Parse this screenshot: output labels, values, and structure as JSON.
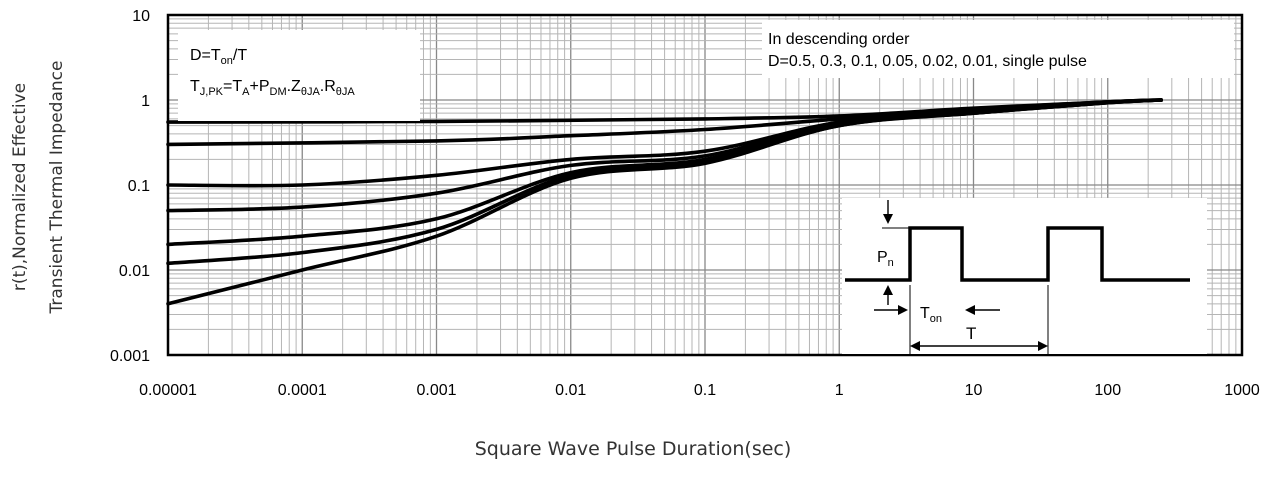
{
  "chart_data": {
    "type": "line",
    "scale": {
      "x": "log",
      "y": "log"
    },
    "xlim": [
      1e-05,
      1000
    ],
    "ylim": [
      0.001,
      10
    ],
    "x_ticks": [
      "0.00001",
      "0.0001",
      "0.001",
      "0.01",
      "0.1",
      "1",
      "10",
      "100",
      "1000"
    ],
    "y_ticks": [
      "10",
      "1",
      "0.1",
      "0.01",
      "0.001"
    ],
    "xlabel": "Square Wave Pulse Duration(sec)",
    "ylabel_lines": [
      "r(t),Normalized Effective",
      "Transient Thermal Impedance"
    ],
    "grid": true,
    "line_color": "#000000",
    "annotation_left": {
      "line1": {
        "base": "D=T",
        "sub": "on",
        "tail": "/T"
      },
      "line2": [
        "T",
        "J,PK",
        "=T",
        "A",
        "+P",
        "DM",
        ".Z",
        "θJA",
        ".R",
        "θJA"
      ]
    },
    "annotation_right": {
      "line1": "In descending order",
      "line2": "D=0.5, 0.3, 0.1, 0.05, 0.02, 0.01, single pulse"
    },
    "inset_labels": {
      "pn": {
        "base": "P",
        "sub": "n"
      },
      "ton": {
        "base": "T",
        "sub": "on"
      },
      "t": "T"
    },
    "series": [
      {
        "values": [
          [
            1e-05,
            0.55
          ],
          [
            0.001,
            0.56
          ],
          [
            0.1,
            0.6
          ],
          [
            1,
            0.65
          ],
          [
            10,
            0.8
          ],
          [
            100,
            0.95
          ],
          [
            250,
            1.0
          ]
        ]
      },
      {
        "values": [
          [
            1e-05,
            0.3
          ],
          [
            0.001,
            0.33
          ],
          [
            0.01,
            0.38
          ],
          [
            0.1,
            0.45
          ],
          [
            1,
            0.6
          ],
          [
            10,
            0.78
          ],
          [
            100,
            0.95
          ],
          [
            250,
            1.0
          ]
        ]
      },
      {
        "values": [
          [
            1e-05,
            0.1
          ],
          [
            0.0001,
            0.1
          ],
          [
            0.001,
            0.13
          ],
          [
            0.01,
            0.2
          ],
          [
            0.1,
            0.25
          ],
          [
            1,
            0.55
          ],
          [
            10,
            0.75
          ],
          [
            100,
            0.95
          ],
          [
            250,
            1.0
          ]
        ]
      },
      {
        "values": [
          [
            1e-05,
            0.05
          ],
          [
            0.0001,
            0.055
          ],
          [
            0.001,
            0.08
          ],
          [
            0.01,
            0.17
          ],
          [
            0.1,
            0.22
          ],
          [
            1,
            0.55
          ],
          [
            10,
            0.73
          ],
          [
            100,
            0.94
          ],
          [
            250,
            1.0
          ]
        ]
      },
      {
        "values": [
          [
            1e-05,
            0.02
          ],
          [
            0.0001,
            0.025
          ],
          [
            0.001,
            0.04
          ],
          [
            0.01,
            0.14
          ],
          [
            0.1,
            0.2
          ],
          [
            1,
            0.52
          ],
          [
            10,
            0.7
          ],
          [
            100,
            0.93
          ],
          [
            250,
            1.0
          ]
        ]
      },
      {
        "values": [
          [
            1e-05,
            0.012
          ],
          [
            0.0001,
            0.016
          ],
          [
            0.001,
            0.03
          ],
          [
            0.01,
            0.13
          ],
          [
            0.1,
            0.19
          ],
          [
            1,
            0.5
          ],
          [
            10,
            0.7
          ],
          [
            100,
            0.93
          ],
          [
            250,
            1.0
          ]
        ]
      },
      {
        "values": [
          [
            1e-05,
            0.004
          ],
          [
            0.0001,
            0.01
          ],
          [
            0.001,
            0.025
          ],
          [
            0.01,
            0.12
          ],
          [
            0.1,
            0.18
          ],
          [
            1,
            0.5
          ],
          [
            10,
            0.7
          ],
          [
            100,
            0.93
          ],
          [
            250,
            1.0
          ]
        ]
      }
    ]
  }
}
